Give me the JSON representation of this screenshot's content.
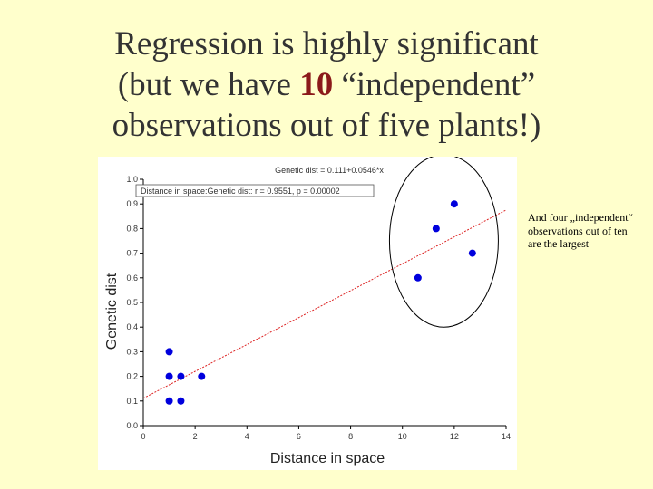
{
  "slide": {
    "title_line1": "Regression is highly significant",
    "title_line2_pre": "(but we have ",
    "title_line2_bold": "10",
    "title_line2_post": " “independent”",
    "title_line3": "observations out of five plants!)",
    "side_note": "And four „independent“ observations out of ten are the largest"
  },
  "chart_data": {
    "type": "scatter",
    "title": "Genetic dist = 0.111+0.0546*x",
    "legend_text": "Distance in space:Genetic dist:   r = 0.9551, p = 0.00002",
    "legend_placement": "top-left",
    "xlabel": "Distance in space",
    "ylabel": "Genetic dist",
    "xlim": [
      0,
      14
    ],
    "ylim": [
      0,
      1.0
    ],
    "xticks": [
      "0",
      "2",
      "4",
      "6",
      "8",
      "10",
      "12",
      "14"
    ],
    "yticks": [
      "0.0",
      "0.1",
      "0.2",
      "0.3",
      "0.4",
      "0.5",
      "0.6",
      "0.7",
      "0.8",
      "0.9",
      "1.0"
    ],
    "grid": false,
    "points": [
      {
        "x": 1.0,
        "y": 0.1
      },
      {
        "x": 1.45,
        "y": 0.1
      },
      {
        "x": 1.0,
        "y": 0.2
      },
      {
        "x": 1.45,
        "y": 0.2
      },
      {
        "x": 2.25,
        "y": 0.2
      },
      {
        "x": 1.0,
        "y": 0.3
      },
      {
        "x": 10.6,
        "y": 0.6
      },
      {
        "x": 11.3,
        "y": 0.8
      },
      {
        "x": 12.0,
        "y": 0.9
      },
      {
        "x": 12.7,
        "y": 0.7
      }
    ],
    "fit": {
      "intercept": 0.111,
      "slope": 0.0546
    },
    "highlight_circle": {
      "cx": 11.6,
      "cy": 0.75,
      "rx": 2.1,
      "ry": 0.35
    },
    "colors": {
      "points": "#0000dd",
      "fit_line": "#dd2222",
      "text": "#333333"
    }
  }
}
